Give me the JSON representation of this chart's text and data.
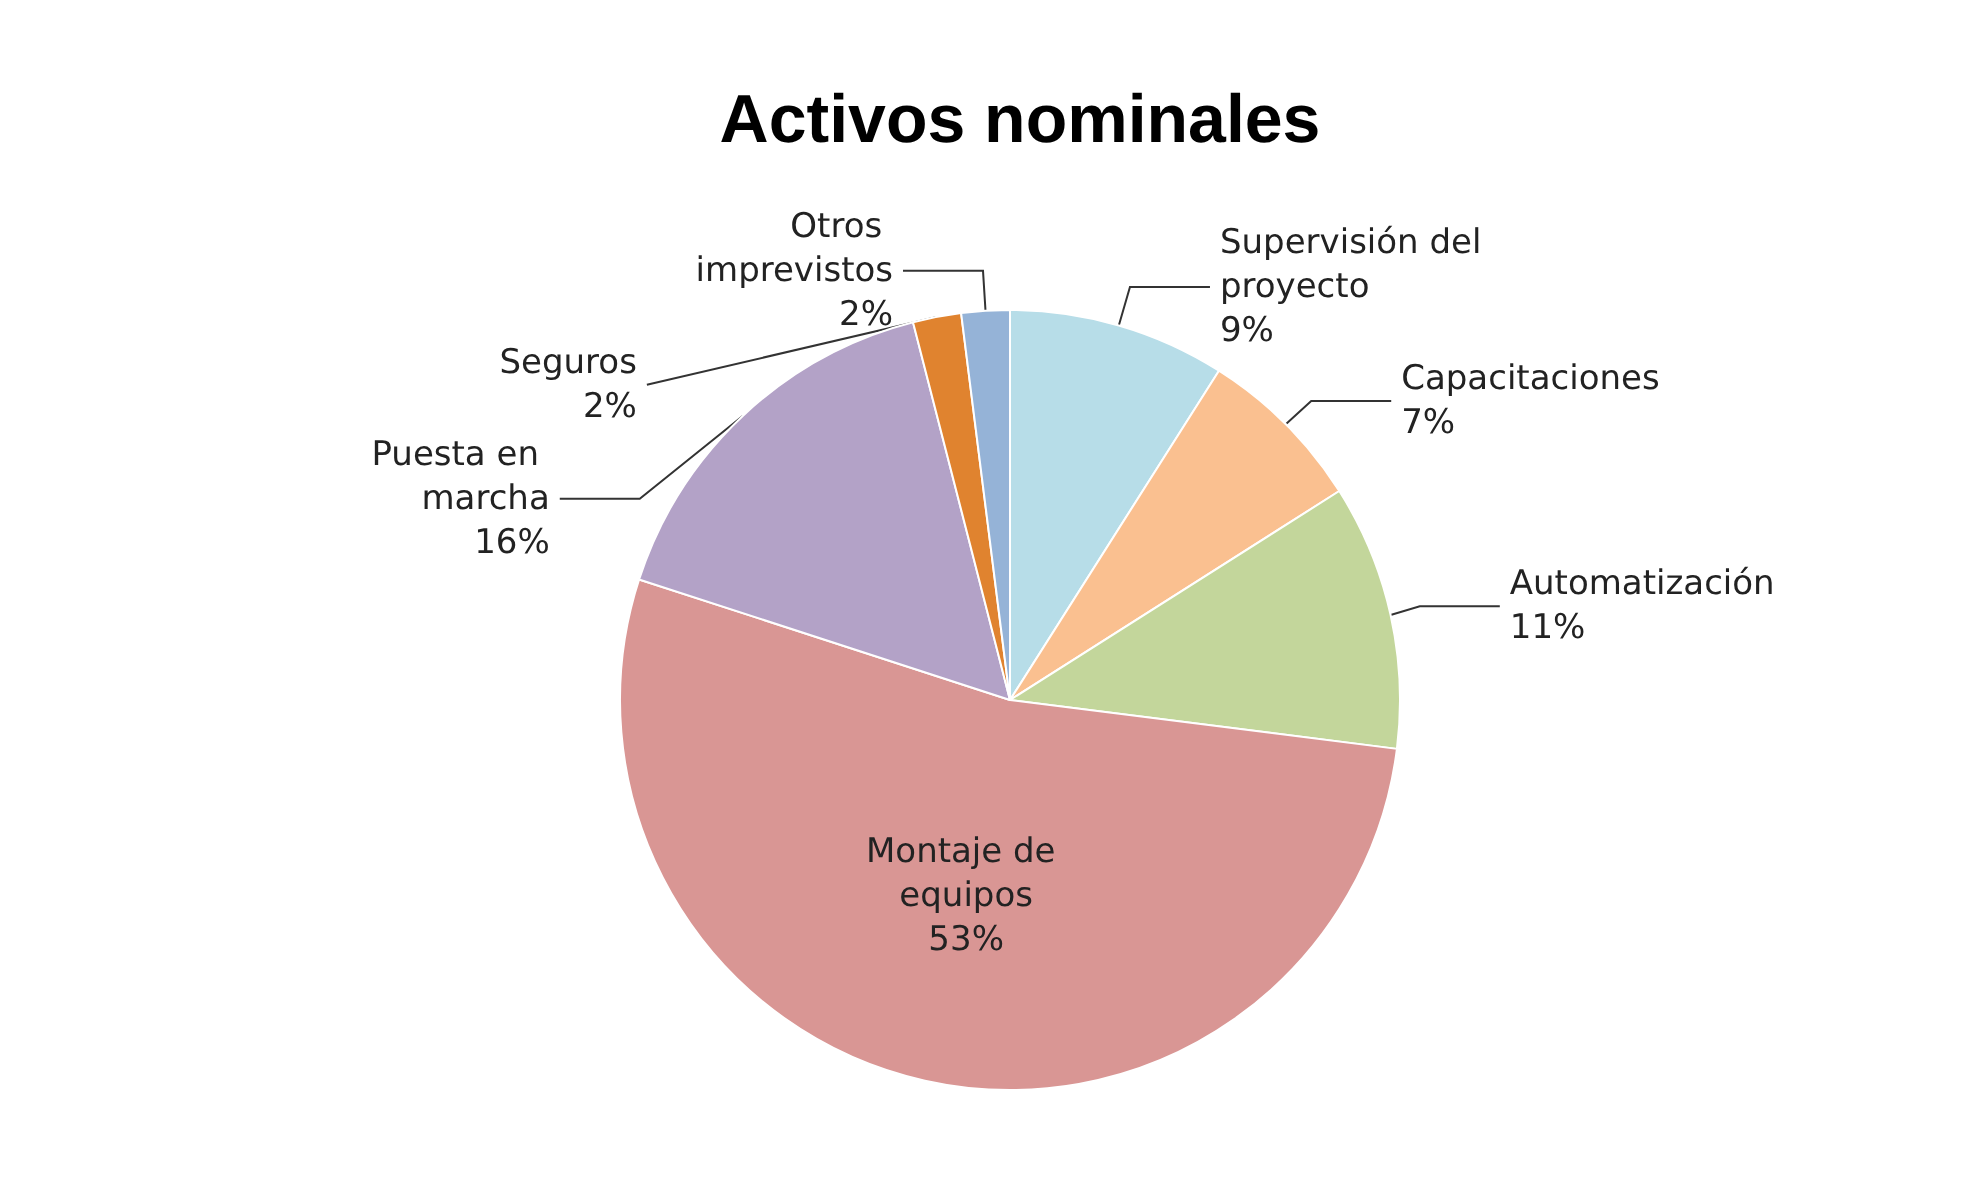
{
  "chart_data": {
    "type": "pie",
    "title": "Activos nominales",
    "categories": [
      "Supervisión del proyecto",
      "Capacitaciones",
      "Automatización",
      "Montaje de equipos",
      "Puesta en marcha",
      "Seguros",
      "Otros imprevistos"
    ],
    "values": [
      9,
      7,
      11,
      53,
      16,
      2,
      2
    ],
    "colors": [
      "#b7dde8",
      "#fac090",
      "#c3d69b",
      "#d99694",
      "#b3a2c7",
      "#e0832f",
      "#95b3d7"
    ],
    "value_labels": [
      "9%",
      "7%",
      "11%",
      "53%",
      "16%",
      "2%",
      "2%"
    ],
    "legend": false
  }
}
